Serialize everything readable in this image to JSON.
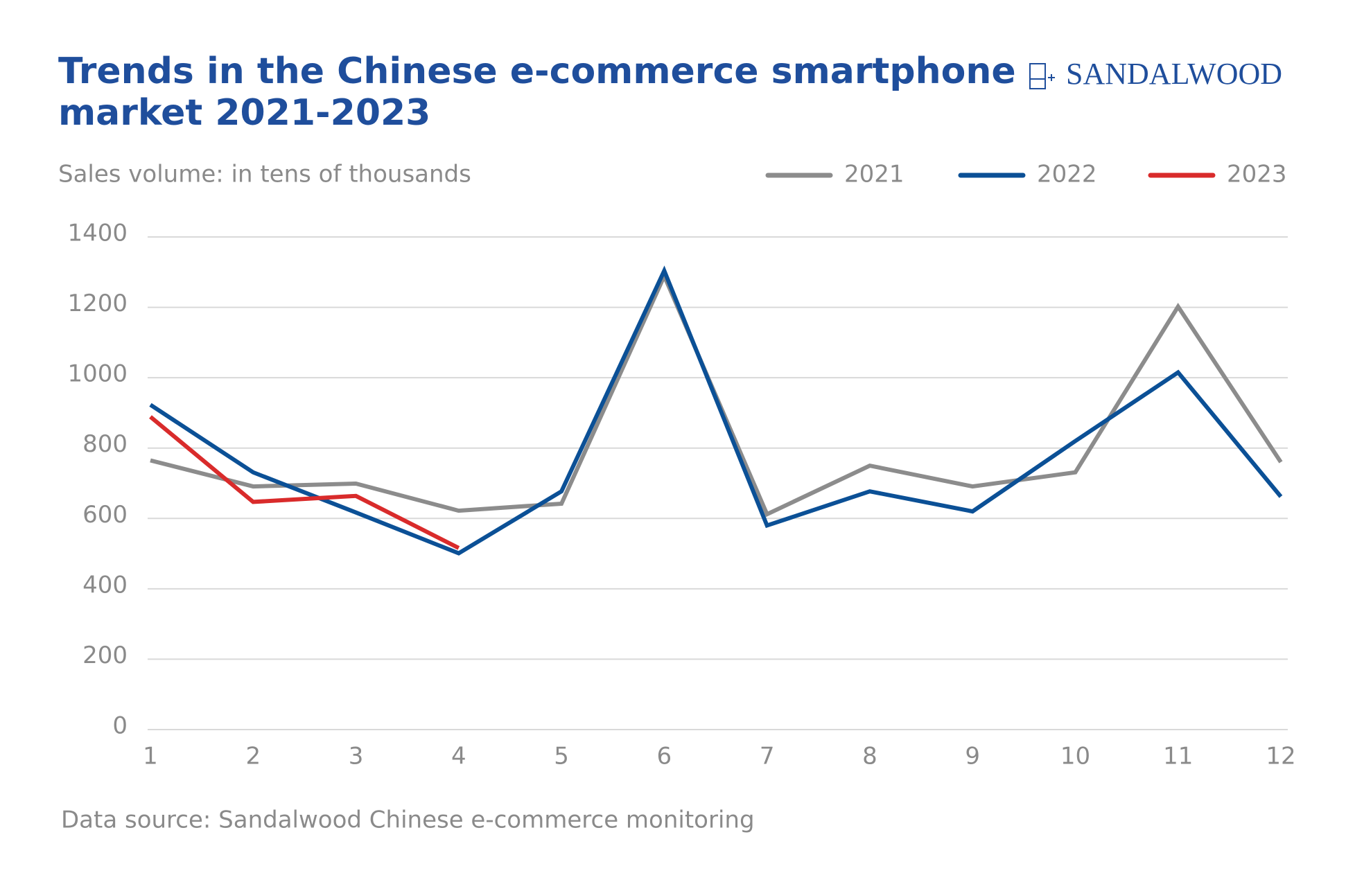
{
  "chart_data": {
    "type": "line",
    "title": [
      "Trends in the Chinese e-commerce smartphone",
      "market 2021-2023"
    ],
    "logo": "SANDALWOOD",
    "subtitle": "Sales volume: in tens of thousands",
    "source": "Data source: Sandalwood Chinese e-commerce monitoring",
    "x": [
      1,
      2,
      3,
      4,
      5,
      6,
      7,
      8,
      9,
      10,
      11,
      12
    ],
    "xlim": [
      1,
      12
    ],
    "xticks": [
      1,
      2,
      3,
      4,
      5,
      6,
      7,
      8,
      9,
      10,
      11,
      12
    ],
    "ylim": [
      0,
      1400
    ],
    "yticks": [
      0,
      200,
      400,
      600,
      800,
      1000,
      1200,
      1400
    ],
    "grid": true,
    "legend": "top-right",
    "series": [
      {
        "name": "2021",
        "color": "#8c8c8c",
        "values": [
          765,
          691,
          699,
          622,
          642,
          1289,
          612,
          750,
          691,
          731,
          1202,
          760
        ]
      },
      {
        "name": "2022",
        "color": "#0b5096",
        "values": [
          923,
          731,
          617,
          501,
          677,
          1304,
          580,
          677,
          620,
          820,
          1015,
          662
        ]
      },
      {
        "name": "2023",
        "color": "#d92b2b",
        "values": [
          889,
          647,
          664,
          516,
          null,
          null,
          null,
          null,
          null,
          null,
          null,
          null
        ]
      }
    ]
  }
}
